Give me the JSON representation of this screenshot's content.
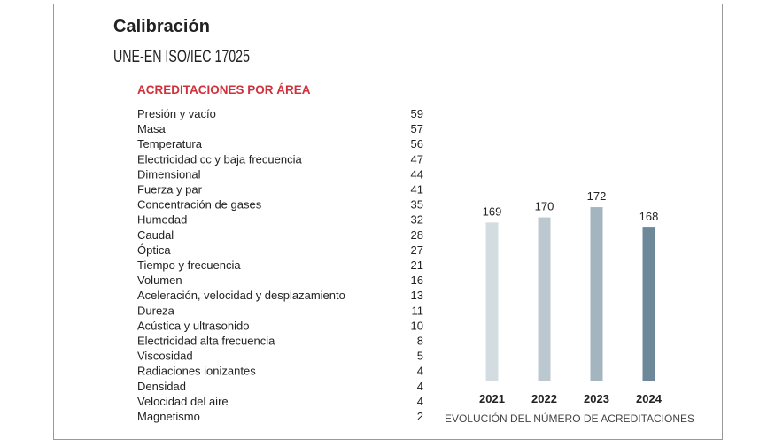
{
  "header": {
    "title": "Calibración",
    "subtitle": "UNE-EN ISO/IEC 17025"
  },
  "table": {
    "heading": "ACREDITACIONES POR ÁREA",
    "rows": [
      [
        "Presión y vacío",
        59
      ],
      [
        "Masa",
        57
      ],
      [
        "Temperatura",
        56
      ],
      [
        "Electricidad cc y baja frecuencia",
        47
      ],
      [
        "Dimensional",
        44
      ],
      [
        "Fuerza y par",
        41
      ],
      [
        "Concentración de gases",
        35
      ],
      [
        "Humedad",
        32
      ],
      [
        "Caudal",
        28
      ],
      [
        "Óptica",
        27
      ],
      [
        "Tiempo y frecuencia",
        21
      ],
      [
        "Volumen",
        16
      ],
      [
        "Aceleración, velocidad y desplazamiento",
        13
      ],
      [
        "Dureza",
        11
      ],
      [
        "Acústica y ultrasonido",
        10
      ],
      [
        "Electricidad alta frecuencia",
        8
      ],
      [
        "Viscosidad",
        5
      ],
      [
        "Radiaciones ionizantes",
        4
      ],
      [
        "Densidad",
        4
      ],
      [
        "Velocidad del aire",
        4
      ],
      [
        "Magnetismo",
        2
      ]
    ]
  },
  "chart_data": {
    "type": "bar",
    "x_label": "EVOLUCIÓN DEL NÚMERO DE ACREDITACIONES",
    "categories": [
      "2021",
      "2022",
      "2023",
      "2024"
    ],
    "values": [
      169,
      170,
      172,
      168
    ],
    "colors": [
      "#d3dce1",
      "#bcc8cf",
      "#a5b5bf",
      "#6c8899"
    ],
    "ylim": [
      138,
      176
    ]
  }
}
